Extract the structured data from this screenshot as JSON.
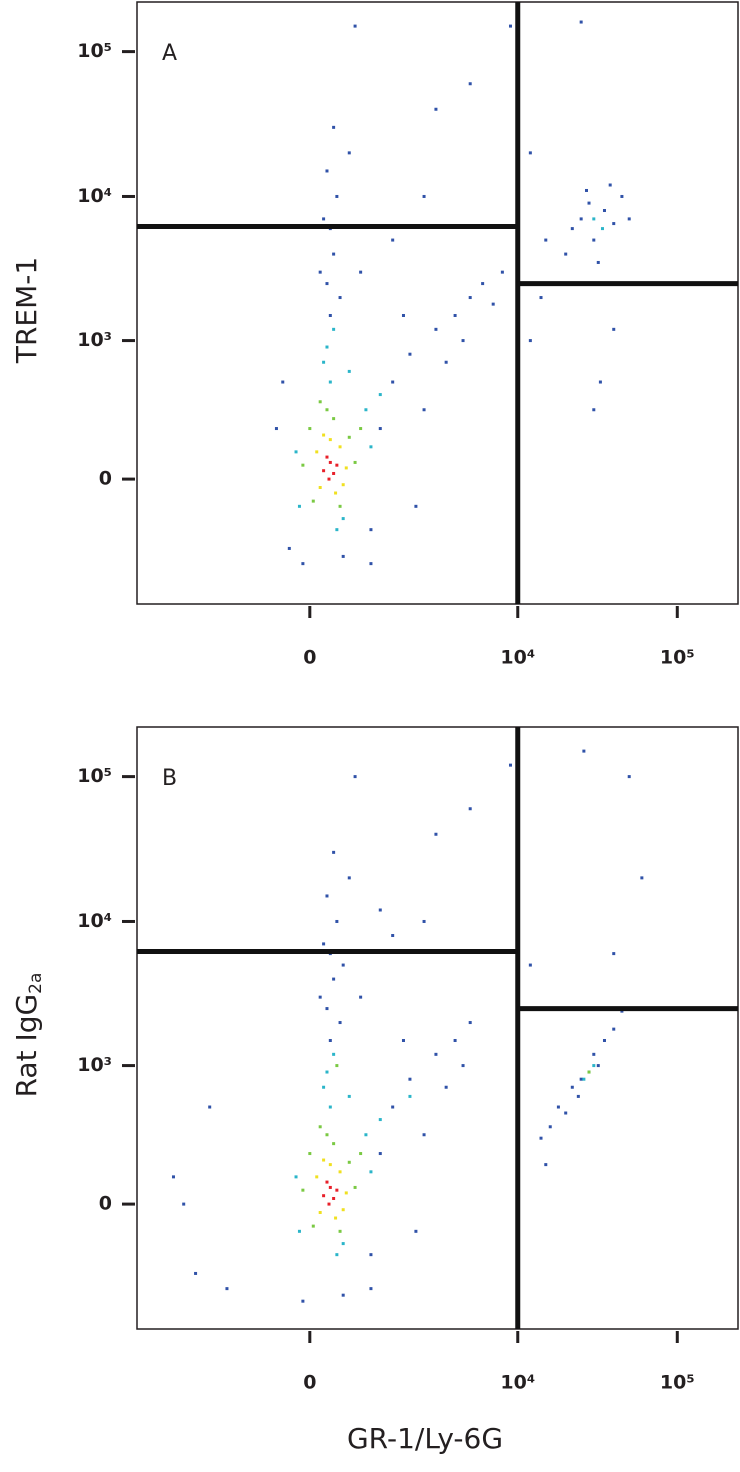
{
  "chart_data": [
    {
      "type": "scatter",
      "annotation": "A",
      "ylabel": "TREM-1",
      "xscale": {
        "type": "asinh",
        "cofactor": 1000
      },
      "yscale": {
        "type": "asinh",
        "cofactor": 224
      },
      "xlim": [
        -6000,
        240000
      ],
      "ylim": [
        -800,
        220000
      ],
      "xticks": [
        0,
        {
          "value": 10000,
          "label": "10⁴"
        },
        {
          "value": 100000,
          "label": "10⁵"
        }
      ],
      "yticks": [
        0,
        {
          "value": 1000,
          "label": "10³"
        },
        {
          "value": 10000,
          "label": "10⁴"
        },
        {
          "value": 100000,
          "label": "10⁵"
        }
      ],
      "gates": {
        "x": 10000,
        "y_left": 6200,
        "y_right": 2500
      },
      "series": [
        {
          "color": "#3052a8",
          "x": [
            300,
            250,
            350,
            200,
            400,
            150,
            450,
            300,
            250,
            350,
            1500,
            2000,
            3000,
            4000,
            5000,
            6000,
            8000,
            2500,
            3500,
            1800,
            4500,
            7000,
            1200,
            2200,
            1000,
            -500,
            -300,
            -400,
            800,
            1500,
            2500,
            600,
            5000,
            9000,
            700,
            3000,
            1000,
            -100,
            500,
            25000,
            30000,
            35000,
            40000,
            20000,
            28000,
            45000,
            32000,
            22000,
            38000,
            15000,
            50000,
            27000,
            12000,
            30000,
            33000,
            40000,
            25000,
            14000,
            12000
          ],
          "values": [
            1500,
            2500,
            4000,
            7000,
            10000,
            3000,
            2000,
            6000,
            15000,
            30000,
            500,
            800,
            1200,
            1500,
            2000,
            2500,
            3000,
            300,
            700,
            1500,
            1000,
            1800,
            200,
            -100,
            -200,
            200,
            -300,
            500,
            3000,
            5000,
            10000,
            20000,
            60000,
            150000,
            150000,
            40000,
            -400,
            -400,
            -350,
            7000,
            5000,
            8000,
            6500,
            4000,
            9000,
            10000,
            3500,
            6000,
            12000,
            5000,
            7000,
            11000,
            20000,
            300,
            500,
            1200,
            160000,
            2000,
            1000
          ]
        },
        {
          "color": "#2bb5c9",
          "x": [
            -200,
            900,
            300,
            200,
            1200,
            500,
            -150,
            1000,
            400,
            250,
            600,
            350,
            30000,
            34000
          ],
          "values": [
            100,
            300,
            500,
            700,
            400,
            -150,
            -100,
            120,
            -200,
            900,
            600,
            1200,
            7000,
            6000
          ]
        },
        {
          "color": "#7ac943",
          "x": [
            0,
            600,
            700,
            50,
            350,
            250,
            450,
            -100,
            800,
            150
          ],
          "values": [
            200,
            160,
            60,
            -80,
            250,
            300,
            -100,
            50,
            200,
            350
          ]
        },
        {
          "color": "#f0e020",
          "x": [
            100,
            450,
            500,
            150,
            300,
            550,
            200,
            380
          ],
          "values": [
            100,
            120,
            -20,
            -30,
            150,
            40,
            170,
            -50
          ]
        },
        {
          "color": "#e8202a",
          "x": [
            200,
            300,
            350,
            250,
            400,
            280
          ],
          "values": [
            30,
            60,
            20,
            80,
            50,
            0
          ]
        }
      ]
    },
    {
      "type": "scatter",
      "annotation": "B",
      "ylabel": "Rat IgG",
      "ylabel_sub": "2a",
      "xlabel": "GR-1/Ly-6G",
      "xscale": {
        "type": "asinh",
        "cofactor": 1000
      },
      "yscale": {
        "type": "asinh",
        "cofactor": 224
      },
      "xlim": [
        -6000,
        240000
      ],
      "ylim": [
        -800,
        220000
      ],
      "xticks": [
        0,
        {
          "value": 10000,
          "label": "10⁴"
        },
        {
          "value": 100000,
          "label": "10⁵"
        }
      ],
      "yticks": [
        0,
        {
          "value": 1000,
          "label": "10³"
        },
        {
          "value": 10000,
          "label": "10⁴"
        },
        {
          "value": 100000,
          "label": "10⁵"
        }
      ],
      "gates": {
        "x": 10000,
        "y_left": 6200,
        "y_right": 2500
      },
      "series": [
        {
          "color": "#3052a8",
          "x": [
            300,
            250,
            350,
            200,
            400,
            150,
            450,
            300,
            250,
            350,
            500,
            1500,
            2000,
            3000,
            4000,
            5000,
            2500,
            3500,
            1800,
            4500,
            1200,
            2200,
            1000,
            -3000,
            -2500,
            -3500,
            -2000,
            -1500,
            800,
            1500,
            2500,
            600,
            5000,
            9000,
            700,
            3000,
            1000,
            -100,
            500,
            1200,
            14000,
            16000,
            18000,
            20000,
            22000,
            25000,
            28000,
            30000,
            35000,
            40000,
            45000,
            24000,
            32000,
            15000,
            12000,
            50000,
            26000,
            60000,
            40000
          ],
          "values": [
            1500,
            2500,
            4000,
            7000,
            10000,
            3000,
            2000,
            6000,
            15000,
            30000,
            5000,
            500,
            800,
            1200,
            1500,
            2000,
            300,
            700,
            1500,
            1000,
            200,
            -100,
            -200,
            0,
            -300,
            100,
            500,
            -400,
            3000,
            8000,
            10000,
            20000,
            60000,
            120000,
            100000,
            40000,
            -400,
            -500,
            -450,
            12000,
            280,
            350,
            500,
            450,
            700,
            800,
            900,
            1200,
            1500,
            1800,
            2400,
            600,
            1000,
            150,
            5000,
            100000,
            150000,
            20000,
            6000
          ]
        },
        {
          "color": "#2bb5c9",
          "x": [
            -200,
            900,
            300,
            200,
            1200,
            500,
            -150,
            1000,
            400,
            250,
            600,
            350,
            2000,
            26000,
            30000
          ],
          "values": [
            100,
            300,
            500,
            700,
            400,
            -150,
            -100,
            120,
            -200,
            900,
            600,
            1200,
            600,
            800,
            1000
          ]
        },
        {
          "color": "#7ac943",
          "x": [
            0,
            600,
            700,
            50,
            350,
            250,
            450,
            -100,
            800,
            150,
            400,
            28000
          ],
          "values": [
            200,
            160,
            60,
            -80,
            250,
            300,
            -100,
            50,
            200,
            350,
            1000,
            900
          ]
        },
        {
          "color": "#f0e020",
          "x": [
            100,
            450,
            500,
            150,
            300,
            550,
            200,
            380
          ],
          "values": [
            100,
            120,
            -20,
            -30,
            150,
            40,
            170,
            -50
          ]
        },
        {
          "color": "#e8202a",
          "x": [
            200,
            300,
            350,
            250,
            400,
            280
          ],
          "values": [
            30,
            60,
            20,
            80,
            50,
            0
          ]
        }
      ]
    }
  ]
}
